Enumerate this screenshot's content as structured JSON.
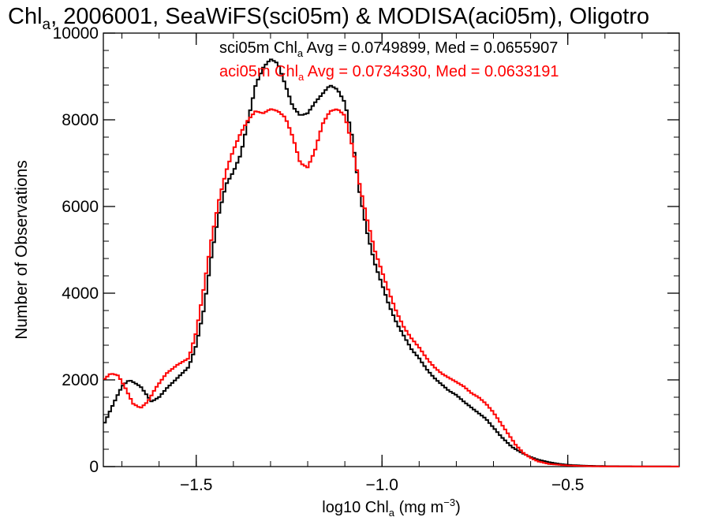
{
  "chart_data": {
    "type": "line",
    "title": {
      "pre": "Chl",
      "sub": "a",
      "post": ", 2006001, SeaWiFS(sci05m) & MODISA(aci05m), Oligotro"
    },
    "xlabel": {
      "pre": "log10 Chl",
      "sub": "a",
      "mid": " (mg m",
      "sup": "−3",
      "post": ")"
    },
    "ylabel": "Number of Observations",
    "xlim": [
      -1.75,
      -0.2
    ],
    "ylim": [
      0,
      10000
    ],
    "x_ticks": [
      -1.5,
      -1.0,
      -0.5
    ],
    "x_tick_labels": [
      "−1.5",
      "−1.0",
      "−0.5"
    ],
    "y_ticks": [
      0,
      2000,
      4000,
      6000,
      8000,
      10000
    ],
    "y_tick_labels": [
      "0",
      "2000",
      "4000",
      "6000",
      "8000",
      "10000"
    ],
    "annotations": [
      {
        "series": "sci05m",
        "pre": "sci05m Chl",
        "sub": "a",
        "post": " Avg = 0.0749899, Med = 0.0655907",
        "color": "#000000"
      },
      {
        "series": "aci05m",
        "pre": "aci05m Chl",
        "sub": "a",
        "post": " Avg = 0.0734330, Med = 0.0633191",
        "color": "#ff0000"
      }
    ],
    "series": [
      {
        "name": "sci05m",
        "color": "#000000",
        "x": [
          -1.75,
          -1.72,
          -1.7,
          -1.68,
          -1.65,
          -1.62,
          -1.6,
          -1.58,
          -1.55,
          -1.52,
          -1.5,
          -1.48,
          -1.46,
          -1.44,
          -1.42,
          -1.4,
          -1.38,
          -1.36,
          -1.34,
          -1.32,
          -1.3,
          -1.28,
          -1.26,
          -1.24,
          -1.22,
          -1.2,
          -1.18,
          -1.16,
          -1.14,
          -1.12,
          -1.1,
          -1.08,
          -1.06,
          -1.04,
          -1.02,
          -1.0,
          -0.98,
          -0.96,
          -0.94,
          -0.92,
          -0.9,
          -0.88,
          -0.86,
          -0.84,
          -0.82,
          -0.8,
          -0.78,
          -0.75,
          -0.72,
          -0.7,
          -0.68,
          -0.65,
          -0.62,
          -0.6,
          -0.58,
          -0.55,
          -0.52,
          -0.5,
          -0.45,
          -0.4,
          -0.3,
          -0.2
        ],
        "values": [
          950,
          1500,
          1850,
          2000,
          1850,
          1500,
          1600,
          1800,
          2050,
          2300,
          2800,
          3600,
          4800,
          5800,
          6500,
          6800,
          7200,
          8000,
          8800,
          9200,
          9400,
          9300,
          8800,
          8300,
          8100,
          8150,
          8400,
          8600,
          8800,
          8700,
          8400,
          7600,
          6300,
          5400,
          4700,
          4200,
          3700,
          3300,
          3000,
          2700,
          2500,
          2250,
          2050,
          1900,
          1750,
          1650,
          1500,
          1300,
          1100,
          900,
          700,
          450,
          300,
          220,
          160,
          100,
          60,
          40,
          20,
          10,
          5,
          2
        ]
      },
      {
        "name": "aci05m",
        "color": "#ff0000",
        "x": [
          -1.75,
          -1.73,
          -1.71,
          -1.69,
          -1.67,
          -1.65,
          -1.63,
          -1.61,
          -1.58,
          -1.55,
          -1.52,
          -1.5,
          -1.48,
          -1.46,
          -1.44,
          -1.42,
          -1.4,
          -1.38,
          -1.36,
          -1.34,
          -1.32,
          -1.3,
          -1.28,
          -1.26,
          -1.24,
          -1.22,
          -1.2,
          -1.18,
          -1.16,
          -1.14,
          -1.12,
          -1.1,
          -1.08,
          -1.06,
          -1.04,
          -1.02,
          -1.0,
          -0.98,
          -0.96,
          -0.94,
          -0.92,
          -0.9,
          -0.88,
          -0.86,
          -0.84,
          -0.82,
          -0.8,
          -0.78,
          -0.76,
          -0.74,
          -0.72,
          -0.7,
          -0.68,
          -0.66,
          -0.64,
          -0.62,
          -0.6,
          -0.58,
          -0.55,
          -0.5,
          -0.45,
          -0.4,
          -0.3,
          -0.2
        ],
        "values": [
          2000,
          2150,
          2100,
          1800,
          1450,
          1350,
          1500,
          1800,
          2150,
          2350,
          2500,
          3100,
          4100,
          5200,
          6100,
          6800,
          7300,
          7700,
          8000,
          8200,
          8150,
          8250,
          8200,
          8050,
          7600,
          7000,
          6900,
          7300,
          7900,
          8200,
          8250,
          8100,
          7400,
          6500,
          5700,
          5000,
          4500,
          4000,
          3550,
          3200,
          2950,
          2750,
          2500,
          2300,
          2150,
          2050,
          1950,
          1850,
          1700,
          1600,
          1450,
          1250,
          1000,
          750,
          500,
          320,
          200,
          120,
          60,
          25,
          10,
          5,
          2,
          1
        ]
      }
    ]
  }
}
